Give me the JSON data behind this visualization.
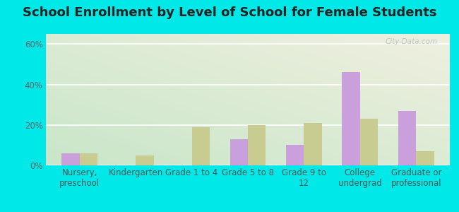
{
  "title": "School Enrollment by Level of School for Female Students",
  "categories": [
    "Nursery,\npreschool",
    "Kindergarten",
    "Grade 1 to 4",
    "Grade 5 to 8",
    "Grade 9 to\n12",
    "College\nundergrad",
    "Graduate or\nprofessional"
  ],
  "michigamme": [
    6,
    0,
    0,
    13,
    10,
    46,
    27
  ],
  "michigan": [
    6,
    5,
    19,
    20,
    21,
    23,
    7
  ],
  "michigamme_color": "#c9a0dc",
  "michigan_color": "#c8cc90",
  "bg_color": "#00e8e8",
  "gradient_top_left": "#c8e6c8",
  "gradient_bottom_right": "#f0f0e0",
  "ylim_max": 65,
  "yticks": [
    0,
    20,
    40,
    60
  ],
  "ytick_labels": [
    "0%",
    "20%",
    "40%",
    "60%"
  ],
  "title_fontsize": 13,
  "tick_fontsize": 8.5,
  "legend_fontsize": 9.5,
  "bar_width": 0.32
}
